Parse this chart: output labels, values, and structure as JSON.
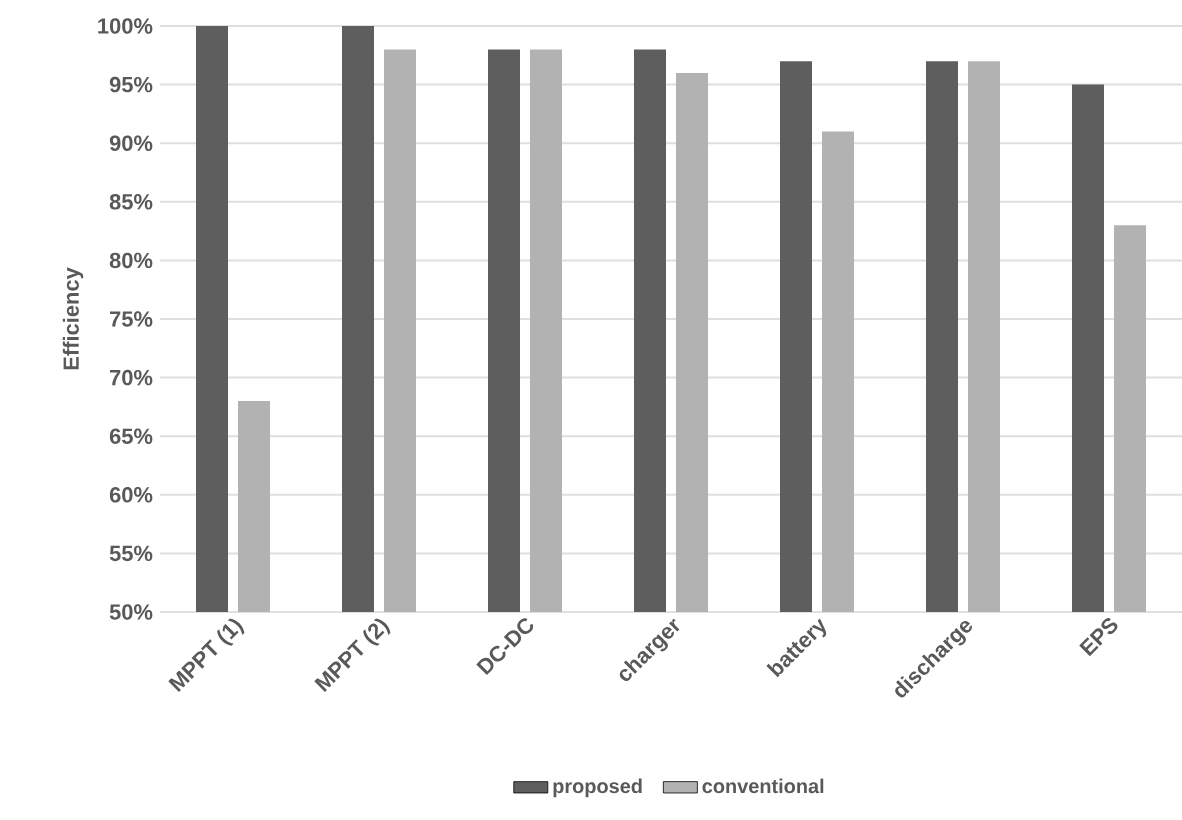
{
  "chart_data": {
    "type": "bar",
    "ylabel": "Efficiency",
    "categories": [
      "MPPT (1)",
      "MPPT (2)",
      "DC-DC",
      "charger",
      "battery",
      "discharge",
      "EPS"
    ],
    "series": [
      {
        "name": "proposed",
        "color": "#5e5e5e",
        "values": [
          100,
          100,
          98,
          98,
          97,
          97,
          95
        ]
      },
      {
        "name": "conventional",
        "color": "#b2b2b2",
        "values": [
          68,
          98,
          98,
          96,
          91,
          97,
          83
        ]
      }
    ],
    "ylim": [
      50,
      100
    ],
    "yticks": [
      {
        "value": 50,
        "label": "50%"
      },
      {
        "value": 55,
        "label": "55%"
      },
      {
        "value": 60,
        "label": "60%"
      },
      {
        "value": 65,
        "label": "65%"
      },
      {
        "value": 70,
        "label": "70%"
      },
      {
        "value": 75,
        "label": "75%"
      },
      {
        "value": 80,
        "label": "80%"
      },
      {
        "value": 85,
        "label": "85%"
      },
      {
        "value": 90,
        "label": "90%"
      },
      {
        "value": 95,
        "label": "95%"
      },
      {
        "value": 100,
        "label": "100%"
      }
    ],
    "grid": "y",
    "legend": "bottom"
  }
}
